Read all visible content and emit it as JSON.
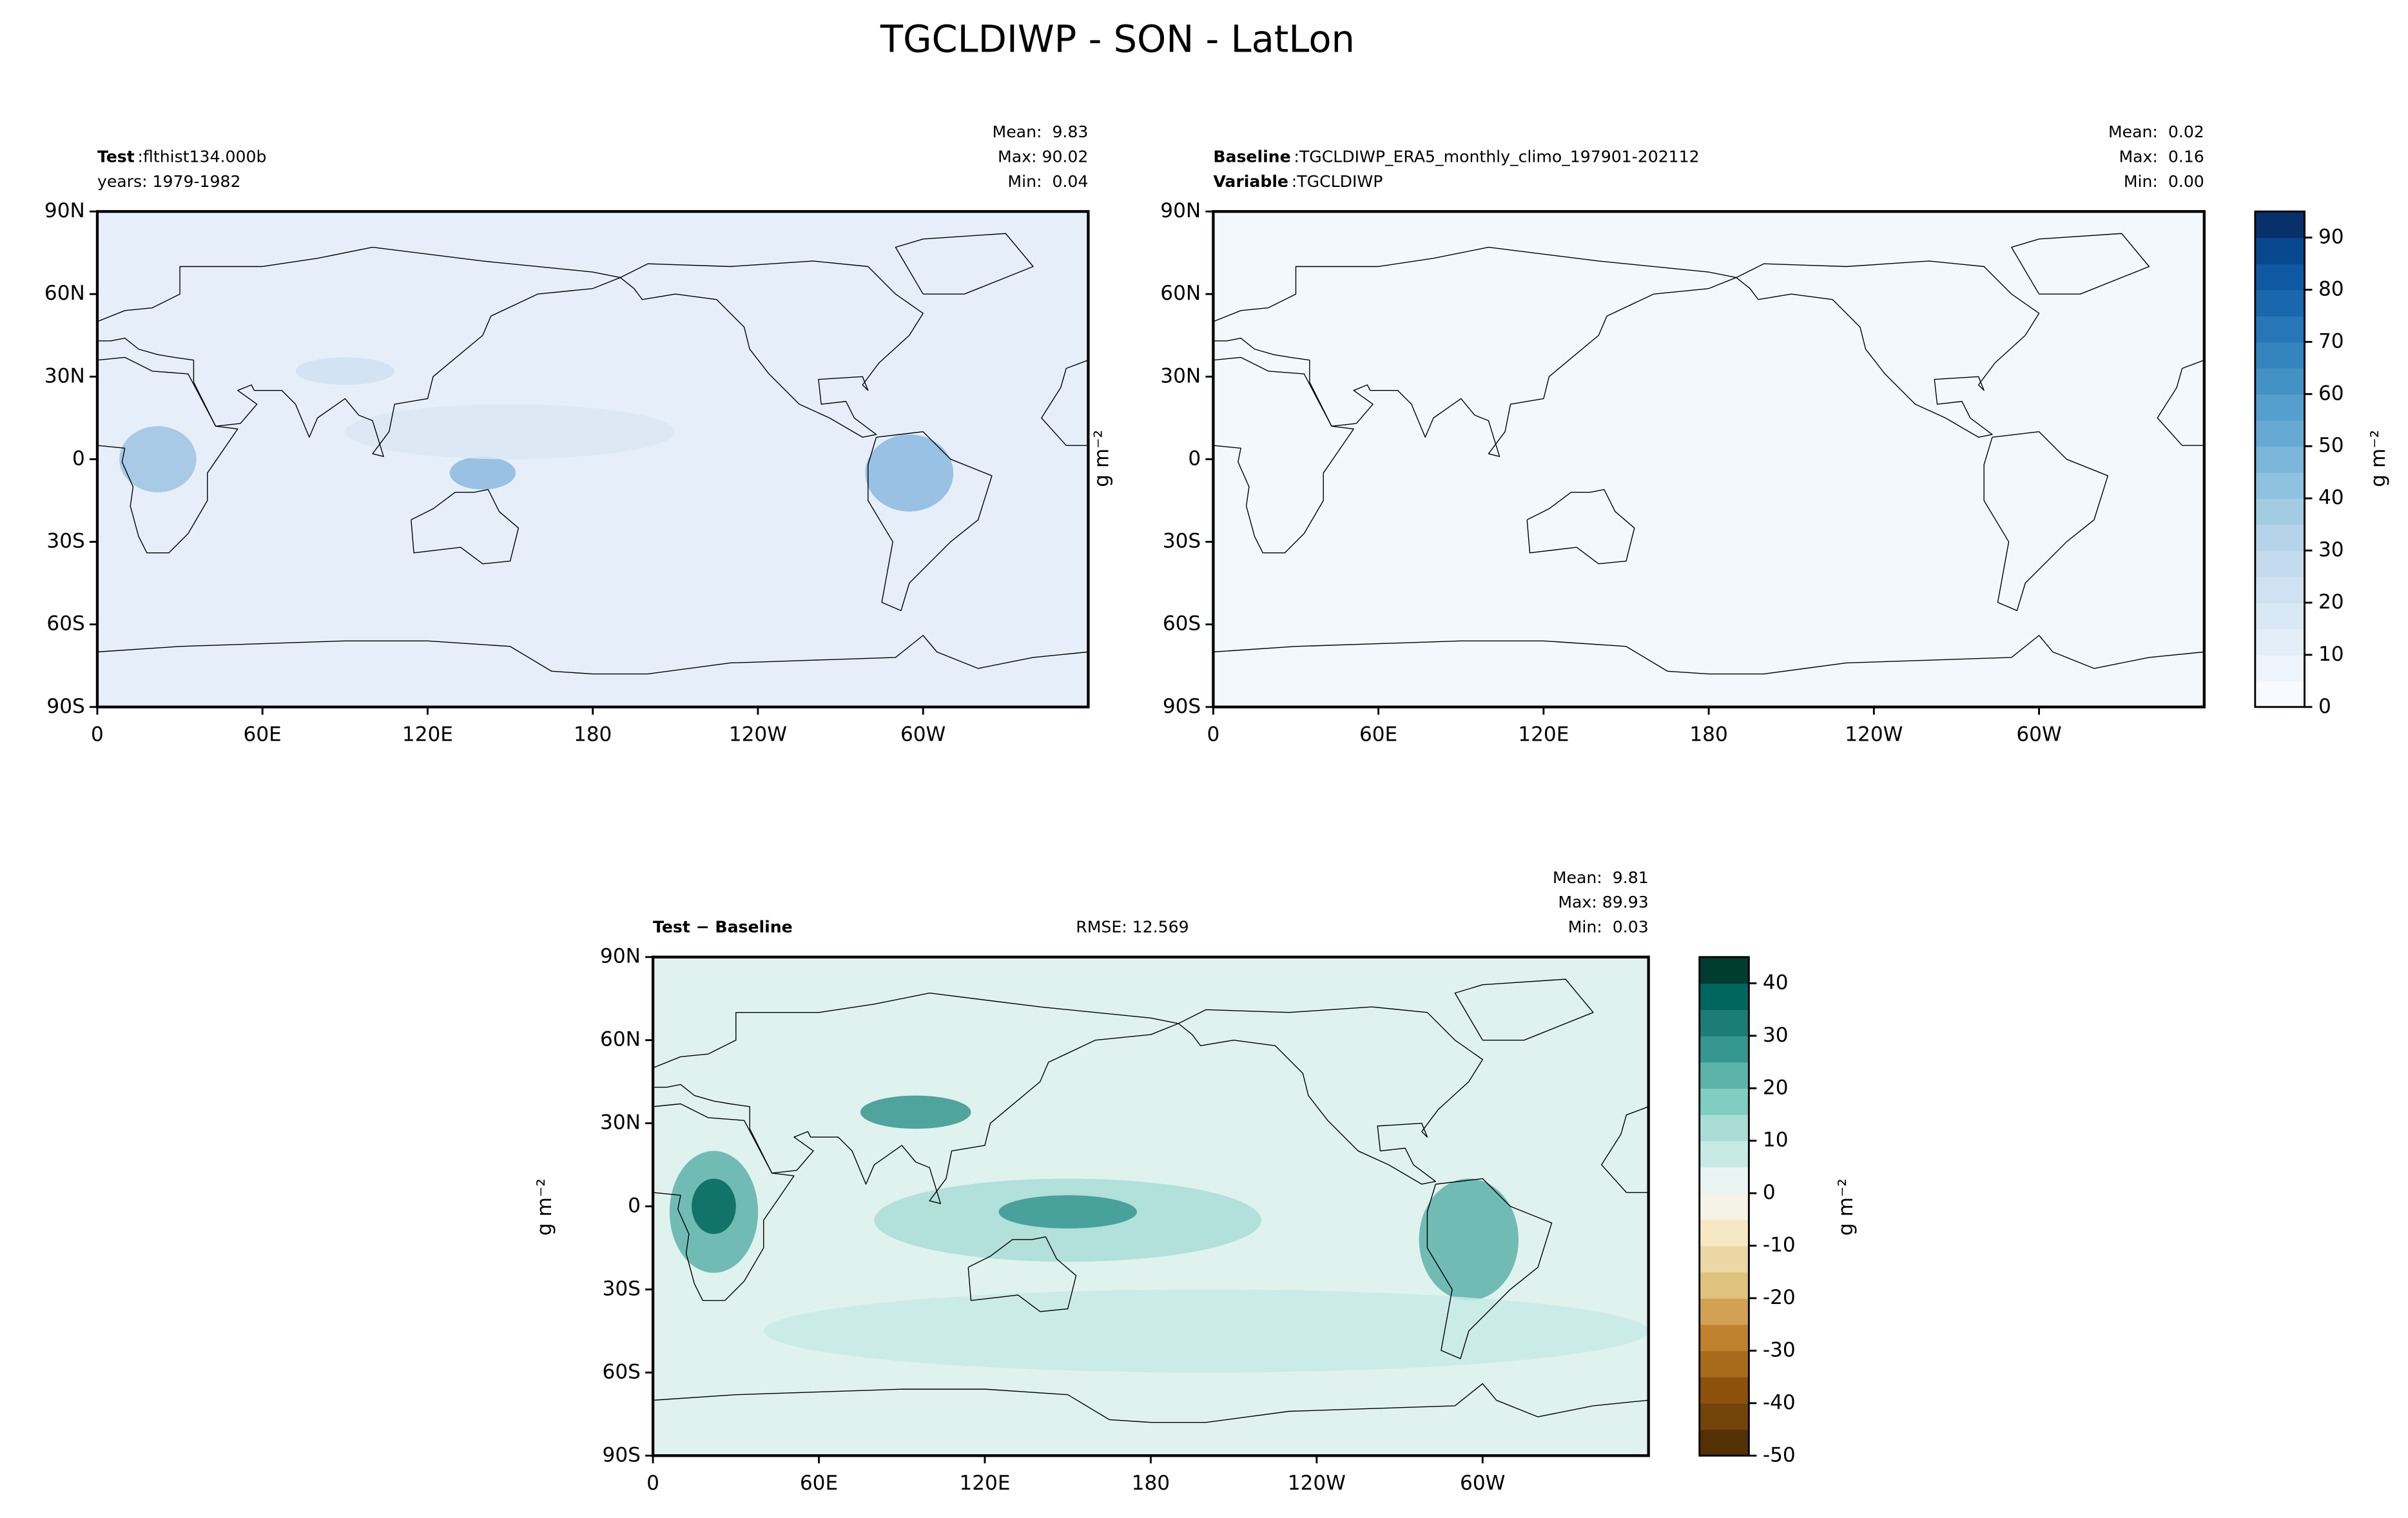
{
  "title": "TGCLDIWP - SON - LatLon",
  "separator": ":",
  "map_axes": {
    "xlim": [
      0,
      360
    ],
    "ylim": [
      -90,
      90
    ],
    "xticks": [
      0,
      {
        "value": 60,
        "label": "60E"
      },
      {
        "value": 120,
        "label": "120E"
      },
      180,
      {
        "value": 240,
        "label": "120W"
      },
      {
        "value": 300,
        "label": "60W"
      }
    ],
    "yticks": [
      {
        "value": -90,
        "label": "90S"
      },
      {
        "value": -60,
        "label": "60S"
      },
      {
        "value": -30,
        "label": "30S"
      },
      0,
      {
        "value": 30,
        "label": "30N"
      },
      {
        "value": 60,
        "label": "60N"
      },
      {
        "value": 90,
        "label": "90N"
      }
    ]
  },
  "panels": [
    {
      "rows": [
        {
          "key": "Test",
          "value": "flthist134.000b"
        },
        {
          "text": "years: 1979-1982"
        }
      ],
      "stats": [
        "Mean:  9.83",
        "Max: 90.02",
        "Min:  0.04"
      ]
    },
    {
      "rows": [
        {
          "key": "Baseline",
          "value": "TGCLDIWP_ERA5_monthly_climo_197901-202112"
        },
        {
          "key": "Variable",
          "value": "TGCLDIWP"
        }
      ],
      "stats": [
        "Mean:  0.02",
        "Max:  0.16",
        "Min:  0.00"
      ],
      "ylabel": "g m⁻²"
    },
    {
      "rows": [
        {
          "key": "Test − Baseline"
        }
      ],
      "center_text": "RMSE: 12.569",
      "stats": [
        "Mean:  9.81",
        "Max: 89.93",
        "Min:  0.03"
      ],
      "ylabel": "g m⁻²"
    }
  ],
  "colorbars": [
    {
      "label": "g m⁻²",
      "lim": [
        0,
        95
      ],
      "ticks": [
        0,
        10,
        20,
        30,
        40,
        50,
        60,
        70,
        80,
        90
      ],
      "colors": [
        "#f7fbff",
        "#edf4fc",
        "#e3eef9",
        "#d9e8f5",
        "#cfe1f2",
        "#c4daee",
        "#b5d4e9",
        "#a3cce3",
        "#8fc2de",
        "#7ab6d9",
        "#66aad4",
        "#549fcd",
        "#4292c6",
        "#3484bf",
        "#2676b8",
        "#1967ad",
        "#0e59a2",
        "#08488e",
        "#08306b"
      ]
    },
    {
      "label": "g m⁻²",
      "lim": [
        -50,
        45
      ],
      "ticks": [
        -50,
        -40,
        -30,
        -20,
        -10,
        0,
        10,
        20,
        30,
        40
      ],
      "colors": [
        "#543005",
        "#73440a",
        "#8c510a",
        "#a86b1c",
        "#bf812d",
        "#d2a153",
        "#dfc27d",
        "#ebd7a3",
        "#f6e8c3",
        "#f5f2e6",
        "#eaf5f3",
        "#c7eae5",
        "#a9ddd6",
        "#80cdc1",
        "#5cb3a9",
        "#35978f",
        "#1b7d75",
        "#01665e",
        "#003c30"
      ]
    }
  ]
}
